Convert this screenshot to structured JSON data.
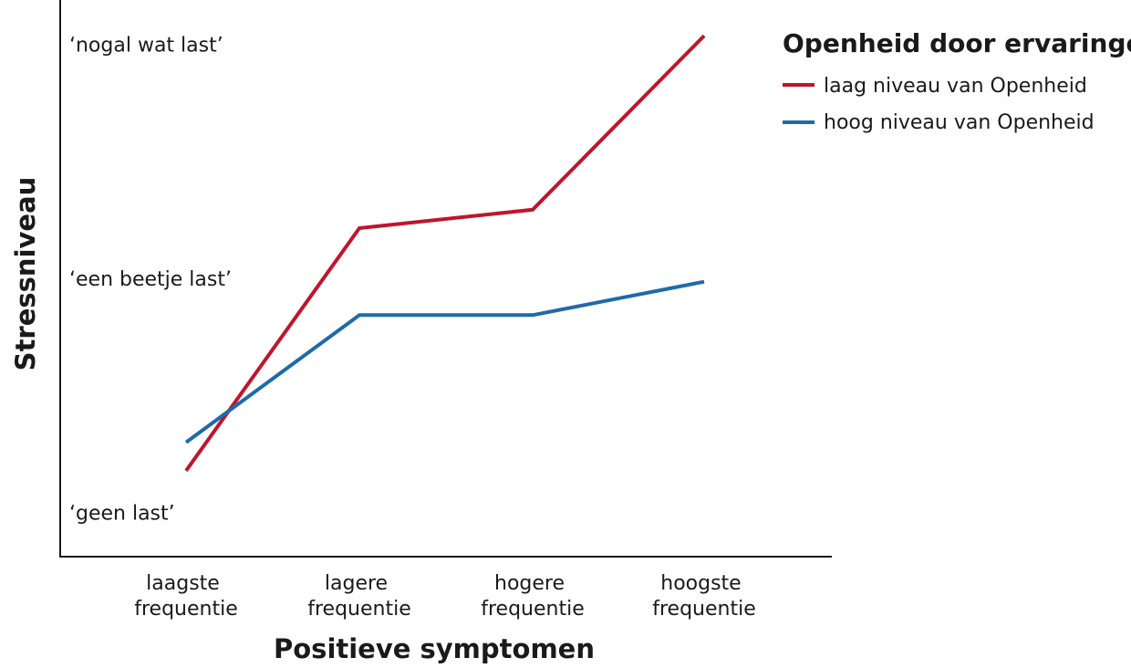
{
  "chart_data": {
    "type": "line",
    "title": "",
    "xlabel": "Positieve symptomen",
    "ylabel": "Stressniveau",
    "categories": [
      [
        "laagste",
        "frequentie"
      ],
      [
        "lagere",
        "frequentie"
      ],
      [
        "hogere",
        "frequentie"
      ],
      [
        "hoogste",
        "frequentie"
      ]
    ],
    "ylim": [
      0,
      3
    ],
    "y_tick_labels": [
      {
        "value": 0.1,
        "label": "‘geen last’"
      },
      {
        "value": 1.5,
        "label": "‘een beetje last’"
      },
      {
        "value": 2.9,
        "label": "‘nogal wat last’"
      }
    ],
    "legend": {
      "title": "Openheid door ervaringen",
      "position": "top-right"
    },
    "series": [
      {
        "name": "laag niveau van Openheid",
        "color": "#c0152b",
        "values": [
          0.35,
          1.8,
          1.91,
          2.95
        ]
      },
      {
        "name": "hoog niveau van Openheid",
        "color": "#1f6aaa",
        "values": [
          0.52,
          1.28,
          1.28,
          1.48
        ]
      }
    ],
    "grid": false
  }
}
